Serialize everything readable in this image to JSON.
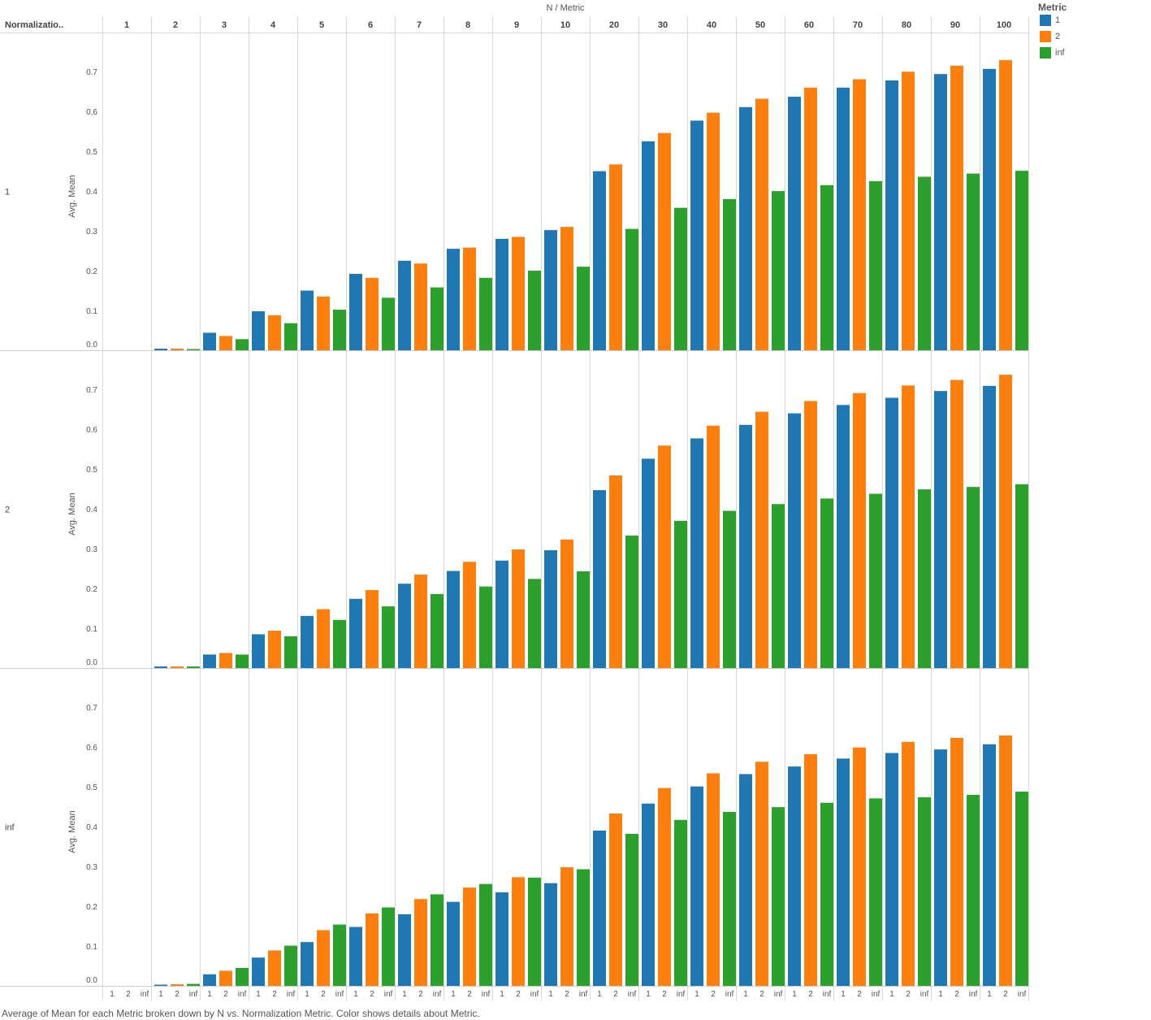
{
  "header": {
    "top_title": "N  /  Metric",
    "row_dim_label": "Normalizatio.."
  },
  "legend": {
    "title": "Metric",
    "items": [
      {
        "label": "1",
        "color": "#1f77b4"
      },
      {
        "label": "2",
        "color": "#ff7f0e"
      },
      {
        "label": "inf",
        "color": "#2ca02c"
      }
    ]
  },
  "caption": "Average of Mean for each Metric broken down by N vs. Normalization Metric.  Color shows details about Metric.",
  "chart_data": {
    "type": "bar",
    "x_dimension": "N",
    "sub_dimension": "Metric",
    "row_dimension": "Normalization Metric",
    "categories": [
      "1",
      "2",
      "3",
      "4",
      "5",
      "6",
      "7",
      "8",
      "9",
      "10",
      "20",
      "30",
      "40",
      "50",
      "60",
      "70",
      "80",
      "90",
      "100"
    ],
    "metrics": [
      "1",
      "2",
      "inf"
    ],
    "ylabel": "Avg. Mean",
    "ylim": [
      0,
      0.78
    ],
    "yticks": [
      0.0,
      0.1,
      0.2,
      0.3,
      0.4,
      0.5,
      0.6,
      0.7
    ],
    "grid": false,
    "legend_position": "top-right",
    "panels": [
      {
        "row_label": "1",
        "series": [
          {
            "name": "1",
            "values": [
              0,
              0.004,
              0.044,
              0.098,
              0.15,
              0.192,
              0.225,
              0.255,
              0.28,
              0.302,
              0.45,
              0.525,
              0.577,
              0.611,
              0.637,
              0.66,
              0.678,
              0.694,
              0.707
            ]
          },
          {
            "name": "2",
            "values": [
              0,
              0.004,
              0.036,
              0.088,
              0.135,
              0.182,
              0.218,
              0.258,
              0.285,
              0.31,
              0.467,
              0.546,
              0.597,
              0.632,
              0.66,
              0.681,
              0.7,
              0.715,
              0.729
            ]
          },
          {
            "name": "inf",
            "values": [
              0,
              0.003,
              0.028,
              0.068,
              0.102,
              0.132,
              0.158,
              0.182,
              0.2,
              0.21,
              0.305,
              0.358,
              0.38,
              0.4,
              0.415,
              0.425,
              0.436,
              0.444,
              0.451
            ]
          }
        ]
      },
      {
        "row_label": "2",
        "series": [
          {
            "name": "1",
            "values": [
              0,
              0.004,
              0.034,
              0.085,
              0.131,
              0.174,
              0.212,
              0.244,
              0.27,
              0.296,
              0.447,
              0.526,
              0.577,
              0.611,
              0.64,
              0.661,
              0.679,
              0.696,
              0.709
            ]
          },
          {
            "name": "2",
            "values": [
              0,
              0.004,
              0.038,
              0.094,
              0.148,
              0.196,
              0.235,
              0.267,
              0.298,
              0.323,
              0.484,
              0.559,
              0.609,
              0.644,
              0.671,
              0.691,
              0.71,
              0.724,
              0.737
            ]
          },
          {
            "name": "inf",
            "values": [
              0,
              0.004,
              0.034,
              0.08,
              0.121,
              0.155,
              0.186,
              0.205,
              0.224,
              0.243,
              0.333,
              0.37,
              0.395,
              0.412,
              0.426,
              0.438,
              0.449,
              0.455,
              0.462
            ]
          }
        ]
      },
      {
        "row_label": "inf",
        "series": [
          {
            "name": "1",
            "values": [
              0,
              0.003,
              0.029,
              0.071,
              0.11,
              0.148,
              0.18,
              0.211,
              0.235,
              0.258,
              0.39,
              0.458,
              0.501,
              0.532,
              0.551,
              0.571,
              0.585,
              0.594,
              0.607
            ]
          },
          {
            "name": "2",
            "values": [
              0,
              0.004,
              0.038,
              0.089,
              0.14,
              0.182,
              0.218,
              0.247,
              0.273,
              0.298,
              0.433,
              0.497,
              0.534,
              0.563,
              0.582,
              0.599,
              0.613,
              0.623,
              0.629
            ]
          },
          {
            "name": "inf",
            "values": [
              0,
              0.005,
              0.045,
              0.101,
              0.154,
              0.197,
              0.23,
              0.256,
              0.272,
              0.293,
              0.382,
              0.417,
              0.437,
              0.449,
              0.46,
              0.471,
              0.474,
              0.48,
              0.488
            ]
          }
        ]
      }
    ]
  }
}
